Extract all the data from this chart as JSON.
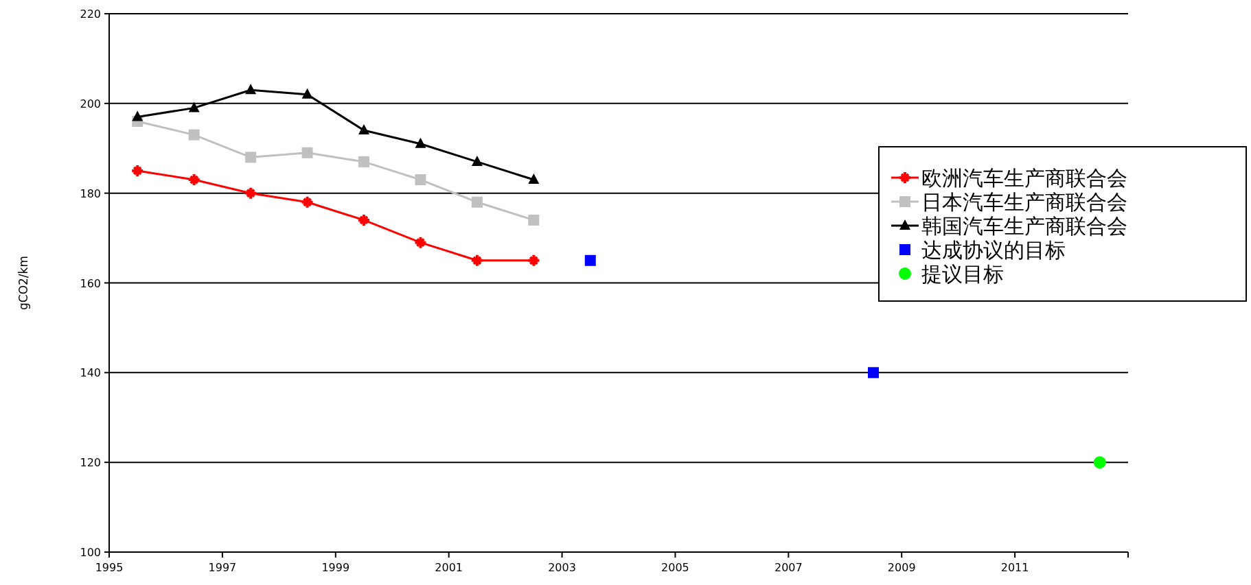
{
  "chart_data": {
    "type": "line",
    "ylabel": "gCO2/km",
    "xlim": [
      1995,
      2013
    ],
    "ylim": [
      100,
      220
    ],
    "xticks": [
      1995,
      1997,
      1999,
      2001,
      2003,
      2005,
      2007,
      2009,
      2011,
      {
        "value": 2013,
        "label": null
      }
    ],
    "yticks": [
      100,
      120,
      140,
      160,
      180,
      200,
      220
    ],
    "grid": "y",
    "legend": "right",
    "series": [
      {
        "name": "欧洲汽车生产商联合会",
        "color": "#ff0000",
        "marker": "cross",
        "x": [
          1995.5,
          1996.5,
          1997.5,
          1998.5,
          1999.5,
          2000.5,
          2001.5,
          2002.5
        ],
        "values": [
          185,
          183,
          180,
          178,
          174,
          169,
          165,
          165
        ]
      },
      {
        "name": "日本汽车生产商联合会",
        "color": "#c0c0c0",
        "marker": "square",
        "x": [
          1995.5,
          1996.5,
          1997.5,
          1998.5,
          1999.5,
          2000.5,
          2001.5,
          2002.5
        ],
        "values": [
          196,
          193,
          188,
          189,
          187,
          183,
          178,
          174
        ]
      },
      {
        "name": "韩国汽车生产商联合会",
        "color": "#000000",
        "marker": "triangle",
        "x": [
          1995.5,
          1996.5,
          1997.5,
          1998.5,
          1999.5,
          2000.5,
          2001.5,
          2002.5
        ],
        "values": [
          197,
          199,
          203,
          202,
          194,
          191,
          187,
          183
        ]
      },
      {
        "name": "达成协议的目标",
        "type": "scatter",
        "color": "#0000ff",
        "marker": "square",
        "x": [
          2003.5,
          2008.5
        ],
        "values": [
          165,
          140
        ]
      },
      {
        "name": "提议目标",
        "type": "scatter",
        "color": "#00ff00",
        "marker": "circle",
        "x": [
          2012.5
        ],
        "values": [
          120
        ]
      }
    ]
  }
}
